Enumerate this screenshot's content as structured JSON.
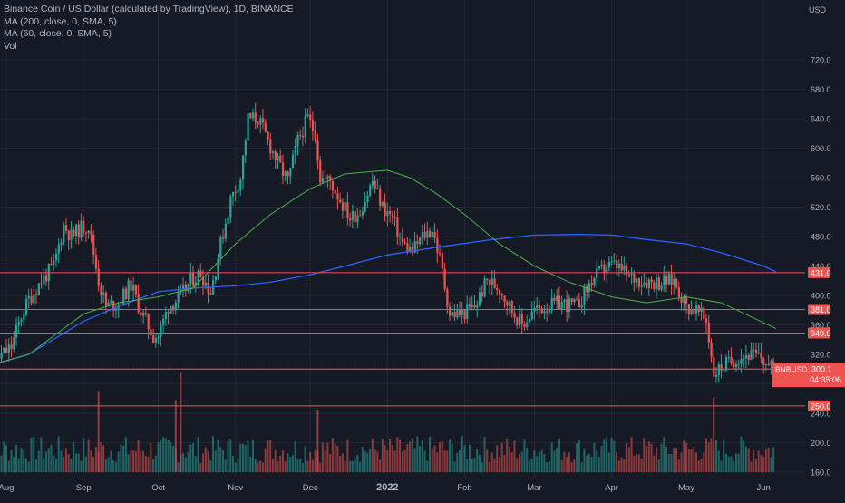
{
  "legend": {
    "title_line": "Binance Coin / US Dollar (calculated by TradingView), 1D, BINANCE",
    "ma200": "MA (200, close, 0, SMA, 5)",
    "ma60": "MA (60, close, 0, SMA, 5)",
    "vol": "Vol"
  },
  "colors": {
    "background": "#161a25",
    "up": "#26a69a",
    "down": "#ef5350",
    "ma200": "#2962ff",
    "ma60": "#4caf50",
    "hline": "#ef5350",
    "axis_text": "#b2b5be"
  },
  "chart_data": {
    "type": "candlestick",
    "symbol": "BNBUSD",
    "currency_label": "USD",
    "y_ticks": [
      160,
      200,
      240,
      280,
      320,
      360,
      400,
      440,
      480,
      520,
      560,
      600,
      640,
      680,
      720
    ],
    "y_tick_labels": [
      "160.0",
      "200.0",
      "240.0",
      "280.0",
      "320.0",
      "360.0",
      "400.0",
      "440.0",
      "480.0",
      "520.0",
      "560.0",
      "600.0",
      "640.0",
      "680.0",
      "720.0"
    ],
    "x_labels": [
      "Aug",
      "Sep",
      "Oct",
      "Nov",
      "Dec",
      "2022",
      "Feb",
      "Mar",
      "Apr",
      "May",
      "Jun"
    ],
    "x_label_dates": [
      "2021-08-01",
      "2021-09-01",
      "2021-10-01",
      "2021-11-01",
      "2021-12-01",
      "2022-01-01",
      "2022-02-01",
      "2022-03-01",
      "2022-04-01",
      "2022-05-01",
      "2022-06-01"
    ],
    "horizontal_levels": [
      {
        "value": 431.0,
        "label": "431.0"
      },
      {
        "value": 381.0,
        "label": "381.0"
      },
      {
        "value": 349.0,
        "label": "349.0"
      },
      {
        "value": 300.0,
        "label": "300.0"
      },
      {
        "value": 250.0,
        "label": "250.0"
      }
    ],
    "last_price": {
      "label": "BNBUSD",
      "value": "300.1",
      "countdown": "04:35:06"
    },
    "close_series": {
      "dates": [
        "2021-07-20",
        "2021-07-27",
        "2021-08-03",
        "2021-08-07",
        "2021-08-10",
        "2021-08-15",
        "2021-08-20",
        "2021-08-24",
        "2021-08-27",
        "2021-08-31",
        "2021-09-03",
        "2021-09-07",
        "2021-09-10",
        "2021-09-15",
        "2021-09-20",
        "2021-09-24",
        "2021-09-29",
        "2021-10-01",
        "2021-10-05",
        "2021-10-10",
        "2021-10-14",
        "2021-10-18",
        "2021-10-22",
        "2021-10-26",
        "2021-10-30",
        "2021-11-03",
        "2021-11-06",
        "2021-11-10",
        "2021-11-14",
        "2021-11-18",
        "2021-11-22",
        "2021-11-26",
        "2021-11-30",
        "2021-12-03",
        "2021-12-05",
        "2021-12-09",
        "2021-12-13",
        "2021-12-17",
        "2021-12-21",
        "2021-12-26",
        "2021-12-30",
        "2022-01-03",
        "2022-01-07",
        "2022-01-11",
        "2022-01-15",
        "2022-01-19",
        "2022-01-22",
        "2022-01-26",
        "2022-01-31",
        "2022-02-05",
        "2022-02-10",
        "2022-02-15",
        "2022-02-20",
        "2022-02-24",
        "2022-03-01",
        "2022-03-06",
        "2022-03-12",
        "2022-03-18",
        "2022-03-24",
        "2022-03-30",
        "2022-04-03",
        "2022-04-08",
        "2022-04-14",
        "2022-04-20",
        "2022-04-26",
        "2022-05-01",
        "2022-05-05",
        "2022-05-09",
        "2022-05-12",
        "2022-05-16",
        "2022-05-21",
        "2022-05-26",
        "2022-05-31",
        "2022-06-04"
      ],
      "closes": [
        292,
        310,
        330,
        372,
        395,
        420,
        440,
        495,
        480,
        492,
        495,
        420,
        385,
        390,
        415,
        378,
        345,
        345,
        385,
        398,
        420,
        430,
        405,
        470,
        530,
        560,
        640,
        640,
        610,
        580,
        555,
        610,
        640,
        620,
        560,
        555,
        530,
        505,
        515,
        555,
        520,
        505,
        470,
        460,
        480,
        490,
        450,
        375,
        375,
        385,
        420,
        410,
        380,
        360,
        380,
        385,
        390,
        385,
        420,
        440,
        440,
        425,
        420,
        418,
        420,
        385,
        380,
        365,
        295,
        305,
        315,
        320,
        315,
        300
      ]
    },
    "ma200_series": {
      "dates": [
        "2021-07-20",
        "2021-08-10",
        "2021-09-01",
        "2021-09-15",
        "2021-10-01",
        "2021-10-15",
        "2021-11-01",
        "2021-11-15",
        "2021-12-01",
        "2021-12-15",
        "2022-01-01",
        "2022-01-20",
        "2022-02-10",
        "2022-03-01",
        "2022-03-20",
        "2022-04-01",
        "2022-04-15",
        "2022-05-01",
        "2022-05-15",
        "2022-06-01",
        "2022-06-06"
      ],
      "values": [
        300,
        320,
        365,
        385,
        405,
        410,
        413,
        418,
        428,
        440,
        455,
        465,
        475,
        482,
        483,
        482,
        476,
        470,
        458,
        440,
        432
      ]
    },
    "ma60_series": {
      "dates": [
        "2021-07-20",
        "2021-08-10",
        "2021-09-01",
        "2021-09-15",
        "2021-10-01",
        "2021-10-15",
        "2021-11-01",
        "2021-11-15",
        "2021-12-01",
        "2021-12-15",
        "2022-01-01",
        "2022-01-10",
        "2022-01-20",
        "2022-02-01",
        "2022-02-15",
        "2022-03-01",
        "2022-03-15",
        "2022-04-01",
        "2022-04-15",
        "2022-05-01",
        "2022-05-15",
        "2022-06-06"
      ],
      "values": [
        300,
        320,
        375,
        390,
        398,
        410,
        470,
        510,
        545,
        565,
        570,
        560,
        540,
        510,
        470,
        440,
        418,
        398,
        390,
        398,
        390,
        355
      ]
    },
    "volume_axis_base": 160,
    "volume_spikes": [
      {
        "date": "2021-09-07",
        "value": 270
      },
      {
        "date": "2021-10-10",
        "value": 295
      },
      {
        "date": "2021-10-08",
        "value": 258
      },
      {
        "date": "2021-12-04",
        "value": 245
      },
      {
        "date": "2022-05-12",
        "value": 262
      }
    ]
  }
}
